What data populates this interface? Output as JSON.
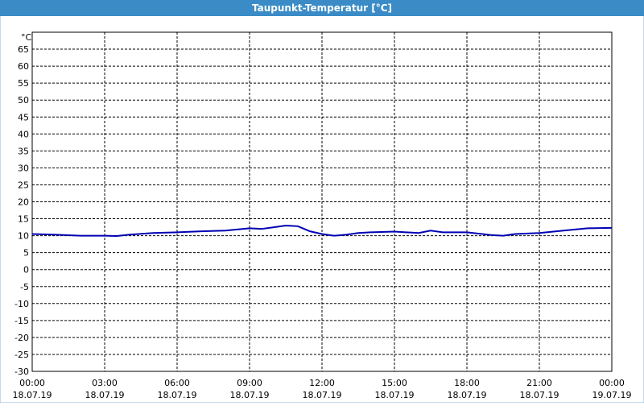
{
  "chart_data": {
    "type": "line",
    "title": "Taupunkt-Temperatur [°C]",
    "y_unit": "°C",
    "x": [
      0,
      1,
      2,
      3,
      3.5,
      4,
      5,
      6,
      7,
      8,
      9,
      9.5,
      10,
      10.5,
      11,
      11.5,
      12,
      12.5,
      13,
      13.5,
      14,
      15,
      16,
      16.5,
      17,
      18,
      19,
      19.5,
      20,
      21,
      22,
      23,
      24
    ],
    "series": [
      {
        "name": "Taupunkt-Temperatur",
        "color": "#0000b4",
        "values": [
          10.5,
          10.3,
          10.0,
          10.0,
          9.9,
          10.3,
          10.8,
          11.0,
          11.3,
          11.5,
          12.2,
          12.0,
          12.5,
          13.0,
          12.8,
          11.3,
          10.5,
          10.0,
          10.3,
          10.8,
          11.0,
          11.2,
          10.8,
          11.5,
          11.0,
          11.0,
          10.2,
          10.0,
          10.5,
          10.8,
          11.5,
          12.2,
          12.3
        ]
      }
    ],
    "xlim": [
      0,
      24
    ],
    "xticks": [
      {
        "value": 0,
        "label": "00:00"
      },
      {
        "value": 3,
        "label": "03:00"
      },
      {
        "value": 6,
        "label": "06:00"
      },
      {
        "value": 9,
        "label": "09:00"
      },
      {
        "value": 12,
        "label": "12:00"
      },
      {
        "value": 15,
        "label": "15:00"
      },
      {
        "value": 18,
        "label": "18:00"
      },
      {
        "value": 21,
        "label": "21:00"
      },
      {
        "value": 24,
        "label": "00:00"
      }
    ],
    "xtick_dates": [
      "18.07.19",
      "18.07.19",
      "18.07.19",
      "18.07.19",
      "18.07.19",
      "18.07.19",
      "18.07.19",
      "18.07.19",
      "19.07.19"
    ],
    "ylim": [
      -30,
      70
    ],
    "yticks": [
      -30,
      -25,
      -20,
      -15,
      -10,
      -5,
      0,
      5,
      10,
      15,
      20,
      25,
      30,
      35,
      40,
      45,
      50,
      55,
      60,
      65
    ],
    "grid": true
  }
}
